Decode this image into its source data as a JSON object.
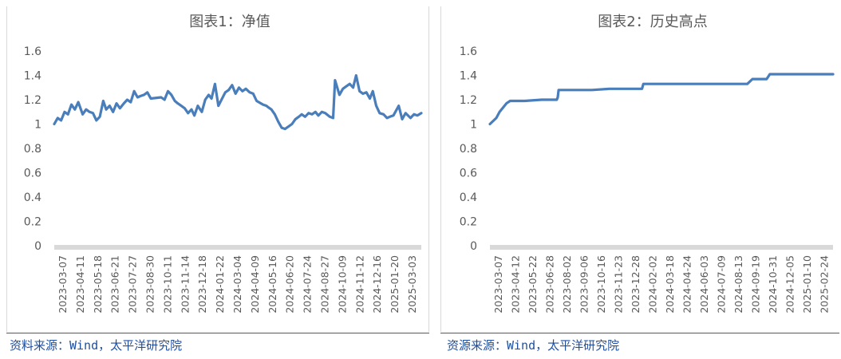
{
  "charts_meta": [
    {
      "source": "资料来源：Wind，太平洋研究院"
    },
    {
      "source": "资源来源：Wind，太平洋研究院"
    }
  ],
  "colors": {
    "series": "#4a7ebb",
    "axis_band": "#d9d9d9",
    "text": "#595959",
    "source_text": "#1f4e9e"
  },
  "chart_data": [
    {
      "type": "line",
      "title": "图表1：净值",
      "xlabel": "",
      "ylabel": "",
      "ylim": [
        0,
        1.6
      ],
      "yticks": [
        0,
        0.2,
        0.4,
        0.6,
        0.8,
        1,
        1.2,
        1.4,
        1.6
      ],
      "ytick_labels": [
        "0",
        "0.2",
        "0.4",
        "0.6",
        "0.8",
        "1",
        "1.2",
        "1.4",
        "1.6"
      ],
      "xlim": [
        "2023-03-07",
        "2025-03-25"
      ],
      "xtick_labels": [
        "2023-03-07",
        "2023-04-11",
        "2023-05-18",
        "2023-06-21",
        "2023-07-27",
        "2023-08-30",
        "2023-10-11",
        "2023-11-14",
        "2023-12-18",
        "2024-01-22",
        "2024-03-04",
        "2024-04-09",
        "2024-05-16",
        "2024-06-20",
        "2024-07-24",
        "2024-08-27",
        "2024-10-09",
        "2024-11-12",
        "2024-12-16",
        "2025-01-20",
        "2025-03-03"
      ],
      "grid": false,
      "series": [
        {
          "x": [
            "2023-03-07",
            "2023-03-14",
            "2023-03-21",
            "2023-03-28",
            "2023-04-04",
            "2023-04-11",
            "2023-04-18",
            "2023-04-25",
            "2023-05-04",
            "2023-05-11",
            "2023-05-18",
            "2023-05-25",
            "2023-06-01",
            "2023-06-08",
            "2023-06-15",
            "2023-06-21",
            "2023-06-28",
            "2023-07-05",
            "2023-07-12",
            "2023-07-19",
            "2023-07-27",
            "2023-08-03",
            "2023-08-10",
            "2023-08-17",
            "2023-08-24",
            "2023-08-30",
            "2023-09-06",
            "2023-09-13",
            "2023-09-20",
            "2023-10-11",
            "2023-10-18",
            "2023-10-25",
            "2023-11-01",
            "2023-11-08",
            "2023-11-14",
            "2023-11-21",
            "2023-11-28",
            "2023-12-05",
            "2023-12-12",
            "2023-12-18",
            "2023-12-25",
            "2024-01-02",
            "2024-01-09",
            "2024-01-16",
            "2024-01-22",
            "2024-01-29",
            "2024-02-05",
            "2024-02-19",
            "2024-02-26",
            "2024-03-04",
            "2024-03-11",
            "2024-03-18",
            "2024-03-25",
            "2024-04-01",
            "2024-04-09",
            "2024-04-16",
            "2024-04-23",
            "2024-05-06",
            "2024-05-13",
            "2024-05-16",
            "2024-05-23",
            "2024-05-30",
            "2024-06-06",
            "2024-06-13",
            "2024-06-20",
            "2024-06-27",
            "2024-07-04",
            "2024-07-11",
            "2024-07-18",
            "2024-07-24",
            "2024-07-31",
            "2024-08-07",
            "2024-08-14",
            "2024-08-21",
            "2024-08-27",
            "2024-09-03",
            "2024-09-10",
            "2024-09-19",
            "2024-09-26",
            "2024-09-30",
            "2024-10-09",
            "2024-10-16",
            "2024-10-23",
            "2024-10-30",
            "2024-11-06",
            "2024-11-12",
            "2024-11-19",
            "2024-11-26",
            "2024-12-03",
            "2024-12-10",
            "2024-12-16",
            "2024-12-23",
            "2024-12-30",
            "2025-01-07",
            "2025-01-14",
            "2025-01-20",
            "2025-01-27",
            "2025-02-07",
            "2025-02-14",
            "2025-02-21",
            "2025-03-03",
            "2025-03-10",
            "2025-03-17",
            "2025-03-25"
          ],
          "values": [
            1.0,
            1.05,
            1.03,
            1.1,
            1.08,
            1.16,
            1.12,
            1.18,
            1.08,
            1.12,
            1.1,
            1.09,
            1.03,
            1.06,
            1.19,
            1.12,
            1.15,
            1.1,
            1.17,
            1.13,
            1.17,
            1.2,
            1.18,
            1.27,
            1.22,
            1.23,
            1.24,
            1.26,
            1.21,
            1.22,
            1.2,
            1.27,
            1.24,
            1.19,
            1.17,
            1.15,
            1.13,
            1.09,
            1.12,
            1.07,
            1.15,
            1.1,
            1.2,
            1.24,
            1.21,
            1.33,
            1.15,
            1.26,
            1.28,
            1.32,
            1.25,
            1.3,
            1.27,
            1.29,
            1.26,
            1.25,
            1.19,
            1.16,
            1.15,
            1.14,
            1.12,
            1.08,
            1.02,
            0.97,
            0.96,
            0.98,
            1.0,
            1.04,
            1.06,
            1.08,
            1.06,
            1.09,
            1.08,
            1.1,
            1.07,
            1.1,
            1.09,
            1.06,
            1.05,
            1.36,
            1.24,
            1.29,
            1.31,
            1.33,
            1.3,
            1.4,
            1.27,
            1.25,
            1.26,
            1.21,
            1.27,
            1.15,
            1.09,
            1.08,
            1.05,
            1.06,
            1.07,
            1.15,
            1.04,
            1.09,
            1.05,
            1.08,
            1.07,
            1.09
          ]
        }
      ]
    },
    {
      "type": "line",
      "title": "图表2：历史高点",
      "xlabel": "",
      "ylabel": "",
      "ylim": [
        0,
        1.6
      ],
      "yticks": [
        0,
        0.2,
        0.4,
        0.6,
        0.8,
        1,
        1.2,
        1.4,
        1.6
      ],
      "ytick_labels": [
        "0",
        "0.2",
        "0.4",
        "0.6",
        "0.8",
        "1",
        "1.2",
        "1.4",
        "1.6"
      ],
      "xlim": [
        "2023-03-07",
        "2025-03-25"
      ],
      "xtick_labels": [
        "2023-03-07",
        "2023-04-12",
        "2023-05-22",
        "2023-06-28",
        "2023-08-02",
        "2023-09-06",
        "2023-10-16",
        "2023-11-23",
        "2023-12-28",
        "2024-02-02",
        "2024-03-18",
        "2024-04-24",
        "2024-06-03",
        "2024-07-09",
        "2024-08-13",
        "2024-09-19",
        "2024-10-31",
        "2024-12-05",
        "2025-01-10",
        "2025-02-24"
      ],
      "grid": false,
      "series": [
        {
          "x": [
            "2023-03-07",
            "2023-03-21",
            "2023-03-28",
            "2023-04-12",
            "2023-04-20",
            "2023-05-22",
            "2023-06-28",
            "2023-07-31",
            "2023-08-02",
            "2023-08-04",
            "2023-09-06",
            "2023-10-16",
            "2023-11-23",
            "2023-12-28",
            "2024-02-02",
            "2024-02-05",
            "2024-03-18",
            "2024-04-24",
            "2024-06-03",
            "2024-07-09",
            "2024-08-13",
            "2024-09-19",
            "2024-09-30",
            "2024-10-08",
            "2024-10-31",
            "2024-11-07",
            "2024-12-05",
            "2025-01-10",
            "2025-02-24",
            "2025-03-25"
          ],
          "values": [
            1.0,
            1.05,
            1.1,
            1.17,
            1.19,
            1.19,
            1.2,
            1.2,
            1.22,
            1.28,
            1.28,
            1.28,
            1.29,
            1.29,
            1.29,
            1.33,
            1.33,
            1.33,
            1.33,
            1.33,
            1.33,
            1.33,
            1.37,
            1.37,
            1.37,
            1.41,
            1.41,
            1.41,
            1.41,
            1.41
          ]
        }
      ]
    }
  ]
}
